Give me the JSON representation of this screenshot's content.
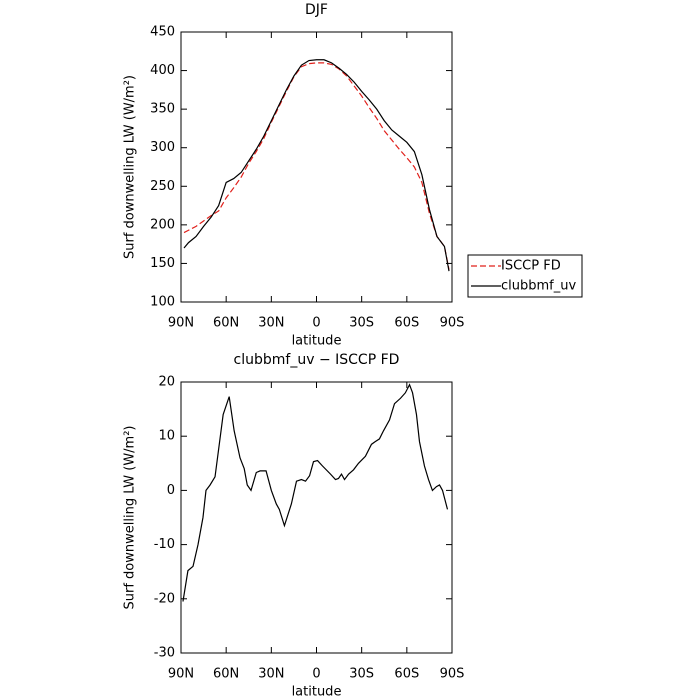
{
  "chart_data": [
    {
      "type": "line",
      "title": "DJF",
      "xlabel": "latitude",
      "ylabel": "Surf downwelling LW (W/m²)",
      "xlim": [
        90,
        -90
      ],
      "xticks": [
        {
          "value": 90,
          "label": "90N"
        },
        {
          "value": 60,
          "label": "60N"
        },
        {
          "value": 30,
          "label": "30N"
        },
        0,
        {
          "value": -30,
          "label": "30S"
        },
        {
          "value": -60,
          "label": "60S"
        },
        {
          "value": -90,
          "label": "90S"
        }
      ],
      "ylim": [
        100,
        450
      ],
      "yticks": [
        100,
        150,
        200,
        250,
        300,
        350,
        400,
        450
      ],
      "legend": "right",
      "x": [
        88,
        85,
        80,
        75,
        70,
        65,
        60,
        55,
        50,
        45,
        40,
        35,
        30,
        25,
        20,
        15,
        10,
        5,
        0,
        -5,
        -10,
        -15,
        -20,
        -25,
        -30,
        -35,
        -40,
        -45,
        -50,
        -55,
        -60,
        -65,
        -70,
        -75,
        -80,
        -85,
        -88
      ],
      "series": [
        {
          "name": "ISCCP FD",
          "color": "#e0201b",
          "dash": true,
          "values": [
            190,
            193,
            198,
            205,
            212,
            218,
            235,
            248,
            262,
            280,
            295,
            312,
            333,
            353,
            373,
            392,
            405,
            409,
            410,
            410,
            408,
            402,
            393,
            380,
            367,
            352,
            338,
            322,
            310,
            298,
            287,
            275,
            255,
            215,
            185,
            172,
            142
          ]
        },
        {
          "name": "clubbmf_uv",
          "color": "#000000",
          "dash": false,
          "values": [
            170,
            177,
            185,
            198,
            210,
            225,
            255,
            260,
            268,
            283,
            298,
            315,
            335,
            355,
            375,
            393,
            407,
            413,
            414,
            414,
            410,
            403,
            395,
            385,
            373,
            362,
            350,
            335,
            323,
            315,
            307,
            295,
            265,
            220,
            185,
            172,
            140
          ]
        }
      ]
    },
    {
      "type": "line",
      "title": "clubbmf_uv − ISCCP FD",
      "xlabel": "latitude",
      "ylabel": "Surf downwelling LW (W/m²)",
      "xlim": [
        90,
        -90
      ],
      "xticks": [
        {
          "value": 90,
          "label": "90N"
        },
        {
          "value": 60,
          "label": "60N"
        },
        {
          "value": 30,
          "label": "30N"
        },
        0,
        {
          "value": -30,
          "label": "30S"
        },
        {
          "value": -60,
          "label": "60S"
        },
        {
          "value": -90,
          "label": "90S"
        }
      ],
      "ylim": [
        -30,
        20
      ],
      "yticks": [
        -30,
        -20,
        -10,
        0,
        10,
        20
      ],
      "color": "#000000",
      "x": [
        88.7,
        85.4,
        82,
        78.7,
        75.4,
        73.4,
        70.7,
        67.4,
        62,
        58,
        54.7,
        50.8,
        48,
        46,
        43.5,
        40,
        37.5,
        33.5,
        30,
        26.7,
        24.7,
        21.3,
        16.7,
        13.3,
        10,
        7.3,
        4.6,
        2,
        -0.7,
        -4,
        -9.3,
        -12.6,
        -14.6,
        -16.6,
        -18.6,
        -21.3,
        -24.6,
        -27.9,
        -32.5,
        -36.5,
        -39,
        -41.8,
        -44.5,
        -48.5,
        -51.8,
        -55.8,
        -59,
        -61.8,
        -63.8,
        -66.4,
        -68.4,
        -71.7,
        -74.4,
        -77,
        -79.7,
        -81.7,
        -83.7,
        -87
      ],
      "values": [
        -20.5,
        -14.8,
        -14,
        -10,
        -5,
        0,
        1,
        2.5,
        14,
        17.3,
        11,
        6,
        4,
        1,
        0,
        3.3,
        3.6,
        3.6,
        0,
        -2.5,
        -3.5,
        -6.5,
        -2.5,
        1.7,
        2,
        1.7,
        2.7,
        5.3,
        5.5,
        4.5,
        3,
        2,
        2.2,
        3,
        2,
        3,
        3.8,
        5,
        6.3,
        8.5,
        9,
        9.5,
        11,
        13,
        16,
        17,
        18,
        19.5,
        18,
        14,
        9,
        4.5,
        2,
        0,
        0.7,
        1,
        0,
        -3.5
      ]
    }
  ]
}
